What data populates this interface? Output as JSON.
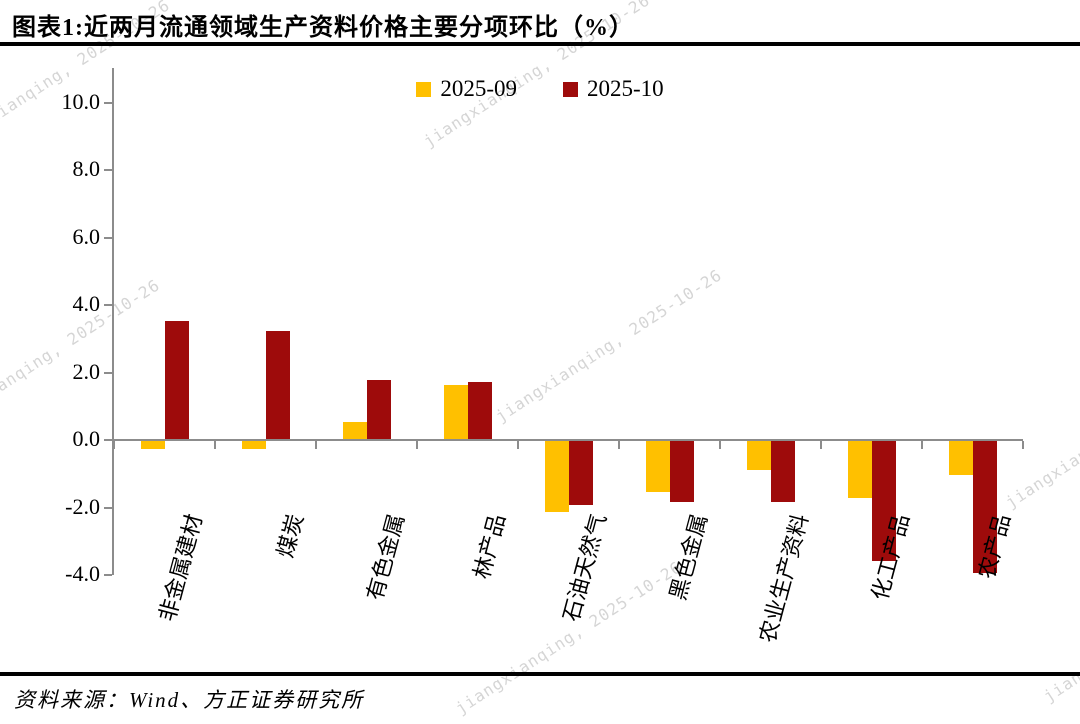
{
  "title": "图表1:近两月流通领域生产资料价格主要分项环比（%）",
  "source": "资料来源：Wind、方正证券研究所",
  "watermark": "jiangxianqing, 2025-10-26",
  "chart_data": {
    "type": "bar",
    "title": "近两月流通领域生产资料价格主要分项环比（%）",
    "categories": [
      "非金属建材",
      "煤炭",
      "有色金属",
      "林产品",
      "石油天然气",
      "黑色金属",
      "农业生产资料",
      "化工产品",
      "农产品"
    ],
    "series": [
      {
        "name": "2025-09",
        "color": "#FFC000",
        "values": [
          -0.25,
          -0.25,
          0.5,
          1.6,
          -2.1,
          -1.5,
          -0.85,
          -1.7,
          -1.0
        ]
      },
      {
        "name": "2025-10",
        "color": "#9E0B0B",
        "values": [
          3.5,
          3.2,
          1.75,
          1.7,
          -1.9,
          -1.8,
          -1.8,
          -3.55,
          -3.9
        ]
      }
    ],
    "ylim": [
      -4,
      11
    ],
    "ytick_labels": [
      "10.0",
      "8.0",
      "6.0",
      "4.0",
      "2.0",
      "0.0",
      "-2.0",
      "-4.0"
    ],
    "grid": false,
    "legend_position": "top-center",
    "axis_color": "#8C8C8C",
    "xlabel": "",
    "ylabel": ""
  }
}
